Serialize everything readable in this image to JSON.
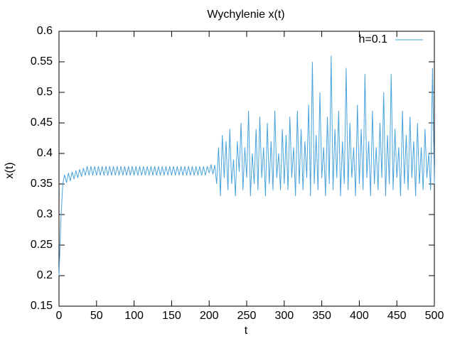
{
  "chart_data": {
    "type": "line",
    "title": "Wychylenie x(t)",
    "xlabel": "t",
    "ylabel": "x(t)",
    "legend": "top-right",
    "grid": false,
    "xlim": [
      0,
      500
    ],
    "xticks": [
      0,
      50,
      100,
      150,
      200,
      250,
      300,
      350,
      400,
      450,
      500
    ],
    "ylim": [
      0.15,
      0.6
    ],
    "yticks": [
      0.15,
      0.2,
      0.25,
      0.3,
      0.35,
      0.4,
      0.45,
      0.5,
      0.55,
      0.6
    ],
    "x": [
      0,
      2.5,
      5,
      7.5,
      10,
      12.5,
      15,
      17.5,
      20,
      22.5,
      25,
      27.5,
      30,
      32.5,
      35,
      37.5,
      40,
      42.5,
      45,
      47.5,
      50,
      52.5,
      55,
      57.5,
      60,
      62.5,
      65,
      67.5,
      70,
      72.5,
      75,
      77.5,
      80,
      82.5,
      85,
      87.5,
      90,
      92.5,
      95,
      97.5,
      100,
      102.5,
      105,
      107.5,
      110,
      112.5,
      115,
      117.5,
      120,
      122.5,
      125,
      127.5,
      130,
      132.5,
      135,
      137.5,
      140,
      142.5,
      145,
      147.5,
      150,
      152.5,
      155,
      157.5,
      160,
      162.5,
      165,
      167.5,
      170,
      172.5,
      175,
      177.5,
      180,
      182.5,
      185,
      187.5,
      190,
      192.5,
      195,
      197.5,
      200,
      202.5,
      205,
      207.5,
      210,
      212.5,
      215,
      217.5,
      220,
      222.5,
      225,
      227.5,
      230,
      232.5,
      235,
      237.5,
      240,
      242.5,
      245,
      247.5,
      250,
      252.5,
      255,
      257.5,
      260,
      262.5,
      265,
      267.5,
      270,
      272.5,
      275,
      277.5,
      280,
      282.5,
      285,
      287.5,
      290,
      292.5,
      295,
      297.5,
      300,
      302.5,
      305,
      307.5,
      310,
      312.5,
      315,
      317.5,
      320,
      322.5,
      325,
      327.5,
      330,
      332.5,
      335,
      337.5,
      340,
      342.5,
      345,
      347.5,
      350,
      352.5,
      355,
      357.5,
      360,
      362.5,
      365,
      367.5,
      370,
      372.5,
      375,
      377.5,
      380,
      382.5,
      385,
      387.5,
      390,
      392.5,
      395,
      397.5,
      400,
      402.5,
      405,
      407.5,
      410,
      412.5,
      415,
      417.5,
      420,
      422.5,
      425,
      427.5,
      430,
      432.5,
      435,
      437.5,
      440,
      442.5,
      445,
      447.5,
      450,
      452.5,
      455,
      457.5,
      460,
      462.5,
      465,
      467.5,
      470,
      472.5,
      475,
      477.5,
      480,
      482.5,
      485,
      487.5,
      490,
      492.5,
      495,
      497.5,
      500
    ],
    "series": [
      {
        "name": "h=0.1",
        "color": "#4aa3dc",
        "values": [
          0.2,
          0.29,
          0.35,
          0.365,
          0.352,
          0.368,
          0.355,
          0.37,
          0.358,
          0.372,
          0.36,
          0.374,
          0.362,
          0.376,
          0.364,
          0.379,
          0.364,
          0.379,
          0.364,
          0.379,
          0.364,
          0.379,
          0.364,
          0.379,
          0.364,
          0.379,
          0.364,
          0.379,
          0.364,
          0.379,
          0.364,
          0.379,
          0.364,
          0.379,
          0.364,
          0.379,
          0.364,
          0.379,
          0.364,
          0.379,
          0.364,
          0.379,
          0.364,
          0.379,
          0.364,
          0.379,
          0.364,
          0.379,
          0.364,
          0.379,
          0.364,
          0.379,
          0.364,
          0.379,
          0.364,
          0.379,
          0.364,
          0.379,
          0.364,
          0.379,
          0.364,
          0.379,
          0.364,
          0.379,
          0.364,
          0.379,
          0.364,
          0.379,
          0.364,
          0.379,
          0.364,
          0.379,
          0.364,
          0.379,
          0.364,
          0.379,
          0.364,
          0.379,
          0.364,
          0.379,
          0.368,
          0.382,
          0.366,
          0.381,
          0.35,
          0.41,
          0.33,
          0.43,
          0.36,
          0.42,
          0.34,
          0.44,
          0.35,
          0.39,
          0.33,
          0.42,
          0.37,
          0.45,
          0.34,
          0.41,
          0.36,
          0.47,
          0.33,
          0.4,
          0.35,
          0.44,
          0.34,
          0.46,
          0.36,
          0.41,
          0.33,
          0.45,
          0.35,
          0.42,
          0.34,
          0.47,
          0.36,
          0.4,
          0.34,
          0.44,
          0.35,
          0.43,
          0.34,
          0.46,
          0.36,
          0.41,
          0.33,
          0.47,
          0.35,
          0.44,
          0.34,
          0.42,
          0.36,
          0.48,
          0.33,
          0.55,
          0.35,
          0.43,
          0.34,
          0.5,
          0.36,
          0.41,
          0.33,
          0.46,
          0.35,
          0.56,
          0.34,
          0.44,
          0.36,
          0.47,
          0.33,
          0.42,
          0.35,
          0.54,
          0.34,
          0.45,
          0.36,
          0.41,
          0.33,
          0.48,
          0.35,
          0.44,
          0.34,
          0.53,
          0.36,
          0.42,
          0.33,
          0.47,
          0.35,
          0.41,
          0.34,
          0.45,
          0.36,
          0.5,
          0.33,
          0.43,
          0.35,
          0.53,
          0.34,
          0.44,
          0.36,
          0.41,
          0.33,
          0.47,
          0.35,
          0.43,
          0.34,
          0.46,
          0.36,
          0.42,
          0.33,
          0.45,
          0.35,
          0.41,
          0.34,
          0.44,
          0.36,
          0.4,
          0.34,
          0.54,
          0.35
        ]
      }
    ]
  }
}
